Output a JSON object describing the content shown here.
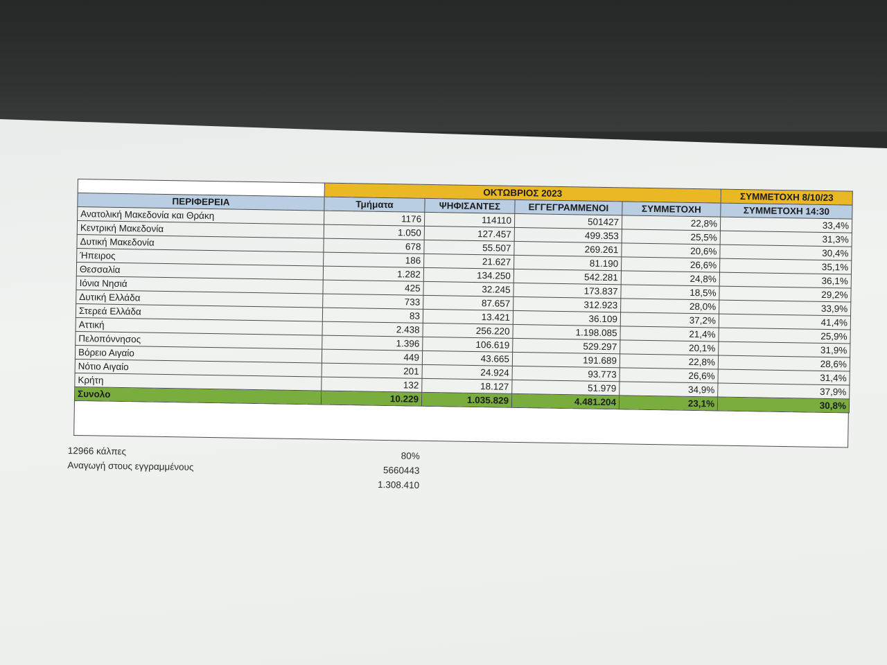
{
  "table": {
    "group_header": "ΟΚΤΩΒΡΙΟΣ 2023",
    "compare_header": "ΣΥΜΜΕΤΟΧΗ 8/10/23",
    "columns": {
      "region": "ΠΕΡΙΦΕΡΕΙΑ",
      "sections": "Τμήματα",
      "voters": "ΨΗΦΙΣΑΝΤΕΣ",
      "registered": "ΕΓΓΕΓΡΑΜΜΕΝΟΙ",
      "turnout": "ΣΥΜΜΕΤΟΧΗ",
      "turnout_prev": "ΣΥΜΜΕΤΟΧΗ 14:30"
    },
    "rows": [
      {
        "region": "Ανατολική Μακεδονία και Θράκη",
        "sections": "1176",
        "voters": "114110",
        "registered": "501427",
        "turnout": "22,8%",
        "turnout_prev": "33,4%"
      },
      {
        "region": "Κεντρική Μακεδονία",
        "sections": "1.050",
        "voters": "127.457",
        "registered": "499.353",
        "turnout": "25,5%",
        "turnout_prev": "31,3%"
      },
      {
        "region": "Δυτική Μακεδονία",
        "sections": "678",
        "voters": "55.507",
        "registered": "269.261",
        "turnout": "20,6%",
        "turnout_prev": "30,4%"
      },
      {
        "region": "Ήπειρος",
        "sections": "186",
        "voters": "21.627",
        "registered": "81.190",
        "turnout": "26,6%",
        "turnout_prev": "35,1%"
      },
      {
        "region": "Θεσσαλία",
        "sections": "1.282",
        "voters": "134.250",
        "registered": "542.281",
        "turnout": "24,8%",
        "turnout_prev": "36,1%"
      },
      {
        "region": "Ιόνια Νησιά",
        "sections": "425",
        "voters": "32.245",
        "registered": "173.837",
        "turnout": "18,5%",
        "turnout_prev": "29,2%"
      },
      {
        "region": "Δυτική Ελλάδα",
        "sections": "733",
        "voters": "87.657",
        "registered": "312.923",
        "turnout": "28,0%",
        "turnout_prev": "33,9%"
      },
      {
        "region": "Στερεά Ελλάδα",
        "sections": "83",
        "voters": "13.421",
        "registered": "36.109",
        "turnout": "37,2%",
        "turnout_prev": "41,4%"
      },
      {
        "region": "Αττική",
        "sections": "2.438",
        "voters": "256.220",
        "registered": "1.198.085",
        "turnout": "21,4%",
        "turnout_prev": "25,9%"
      },
      {
        "region": "Πελοπόννησος",
        "sections": "1.396",
        "voters": "106.619",
        "registered": "529.297",
        "turnout": "20,1%",
        "turnout_prev": "31,9%"
      },
      {
        "region": "Βόρειο Αιγαίο",
        "sections": "449",
        "voters": "43.665",
        "registered": "191.689",
        "turnout": "22,8%",
        "turnout_prev": "28,6%"
      },
      {
        "region": "Νότιο Αιγαίο",
        "sections": "201",
        "voters": "24.924",
        "registered": "93.773",
        "turnout": "26,6%",
        "turnout_prev": "31,4%"
      },
      {
        "region": "Κρήτη",
        "sections": "132",
        "voters": "18.127",
        "registered": "51.979",
        "turnout": "34,9%",
        "turnout_prev": "37,9%"
      }
    ],
    "total": {
      "region": "Συνολο",
      "sections": "10.229",
      "voters": "1.035.829",
      "registered": "4.481.204",
      "turnout": "23,1%",
      "turnout_prev": "30,8%"
    }
  },
  "notes": {
    "ballots_label": "12966 κάλπες",
    "ballots_pct": "80%",
    "projection_label": "Αναγωγή στους εγγραμμένους",
    "projection_value": "5660443",
    "result_value": "1.308.410"
  },
  "colors": {
    "header_gold": "#e9b824",
    "header_blue": "#b9cde3",
    "total_green": "#79ad3d"
  }
}
